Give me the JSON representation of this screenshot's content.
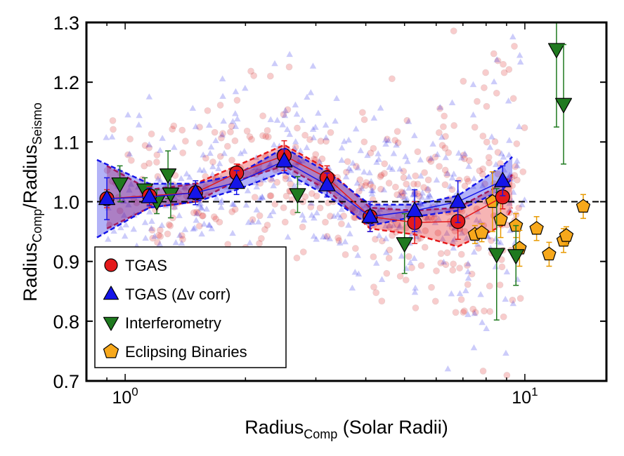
{
  "chart_data": {
    "type": "scatter",
    "x_scale": "log",
    "xlim": [
      0.8,
      16
    ],
    "ylim": [
      0.7,
      1.3
    ],
    "xlabel": {
      "main": "Radius",
      "sub": "Comp",
      "rest": " (Solar Radii)"
    },
    "ylabel": {
      "a": "Radius",
      "a_sub": "Comp",
      "sep": "/Radius",
      "b_sub": "Seismo"
    },
    "x_ticks": [
      {
        "value": 1,
        "base": "10",
        "exp": "0"
      },
      {
        "value": 10,
        "base": "10",
        "exp": "1"
      }
    ],
    "y_ticks": [
      {
        "value": 0.7,
        "label": "0.7"
      },
      {
        "value": 0.8,
        "label": "0.8"
      },
      {
        "value": 0.9,
        "label": "0.9"
      },
      {
        "value": 1.0,
        "label": "1.0"
      },
      {
        "value": 1.1,
        "label": "1.1"
      },
      {
        "value": 1.2,
        "label": "1.2"
      },
      {
        "value": 1.3,
        "label": "1.3"
      }
    ],
    "reference_line": 1.0,
    "legend": [
      {
        "label": "TGAS",
        "marker": "circle",
        "color": "#e41a1c"
      },
      {
        "label": "TGAS (Δv corr)",
        "marker": "triangle-up",
        "color": "#1515e8"
      },
      {
        "label": "Interferometry",
        "marker": "triangle-down",
        "color": "#1f7a1f"
      },
      {
        "label": "Eclipsing Binaries",
        "marker": "pentagon",
        "color": "#f7a81b"
      }
    ],
    "bands": [
      {
        "name": "TGAS",
        "color": "#e41a1c",
        "x": [
          0.9,
          1.15,
          1.5,
          1.9,
          2.5,
          3.2,
          4.1,
          5.3,
          6.8,
          8.8,
          9.3
        ],
        "upper": [
          1.06,
          1.02,
          1.03,
          1.06,
          1.095,
          1.055,
          0.99,
          0.985,
          0.99,
          1.03,
          1.045
        ],
        "lower": [
          0.955,
          0.99,
          1.0,
          1.035,
          1.06,
          1.02,
          0.955,
          0.945,
          0.925,
          0.96,
          0.99
        ]
      },
      {
        "name": "TGAS (Δv corr)",
        "color": "#1515e8",
        "x": [
          0.85,
          1.15,
          1.5,
          1.9,
          2.5,
          3.2,
          4.1,
          5.3,
          6.8,
          8.8,
          9.3
        ],
        "upper": [
          1.07,
          1.03,
          1.03,
          1.045,
          1.09,
          1.05,
          0.995,
          0.995,
          1.01,
          1.06,
          1.075
        ],
        "lower": [
          0.94,
          0.99,
          1.0,
          1.02,
          1.05,
          1.01,
          0.96,
          0.975,
          0.985,
          1.02,
          1.04
        ]
      }
    ],
    "series": [
      {
        "name": "TGAS",
        "marker": "circle",
        "color": "#e41a1c",
        "x": [
          0.9,
          1.15,
          1.5,
          1.9,
          2.5,
          3.2,
          4.1,
          5.3,
          6.8,
          8.8
        ],
        "y": [
          1.005,
          1.01,
          1.015,
          1.048,
          1.077,
          1.04,
          0.975,
          0.965,
          0.967,
          1.008
        ],
        "err": [
          0.015,
          0.015,
          0.015,
          0.015,
          0.025,
          0.02,
          0.025,
          0.035,
          0.03,
          0.02
        ]
      },
      {
        "name": "TGAS (Δv corr)",
        "marker": "triangle-up",
        "color": "#1515e8",
        "x": [
          0.9,
          1.15,
          1.5,
          1.9,
          2.5,
          3.2,
          4.1,
          5.3,
          6.8,
          8.8
        ],
        "y": [
          1.005,
          1.008,
          1.015,
          1.032,
          1.068,
          1.028,
          0.975,
          0.985,
          1.0,
          1.035
        ],
        "err": [
          0.035,
          0.015,
          0.02,
          0.02,
          0.02,
          0.02,
          0.025,
          0.035,
          0.035,
          0.025
        ]
      },
      {
        "name": "Interferometry",
        "marker": "triangle-down",
        "color": "#1f7a1f",
        "x": [
          0.97,
          1.12,
          1.2,
          1.28,
          1.3,
          2.7,
          5.0,
          8.5,
          9.5,
          12.0,
          12.5
        ],
        "y": [
          1.03,
          1.02,
          1.0,
          1.045,
          1.013,
          1.012,
          0.93,
          0.912,
          0.91,
          1.255,
          1.163
        ],
        "err": [
          0.03,
          0.02,
          0.02,
          0.04,
          0.04,
          0.03,
          0.05,
          0.11,
          0.05,
          0.13,
          0.1
        ]
      },
      {
        "name": "Eclipsing Binaries",
        "marker": "pentagon",
        "color": "#f7a81b",
        "x": [
          7.5,
          7.8,
          8.3,
          8.7,
          9.5,
          9.7,
          10.7,
          11.5,
          12.5,
          12.7,
          14.0
        ],
        "y": [
          0.945,
          0.948,
          1.0,
          0.97,
          0.96,
          0.922,
          0.955,
          0.912,
          0.935,
          0.943,
          0.992
        ],
        "err": [
          0.015,
          0.015,
          0.05,
          0.03,
          0.02,
          0.03,
          0.02,
          0.02,
          0.02,
          0.015,
          0.02
        ]
      }
    ],
    "background_series": [
      {
        "name": "TGAS individual stars",
        "marker": "circle",
        "color": "#e41a1c",
        "count": 420
      },
      {
        "name": "TGAS (Δv corr) individual stars",
        "marker": "triangle-up",
        "color": "#1515e8",
        "count": 420
      }
    ]
  }
}
